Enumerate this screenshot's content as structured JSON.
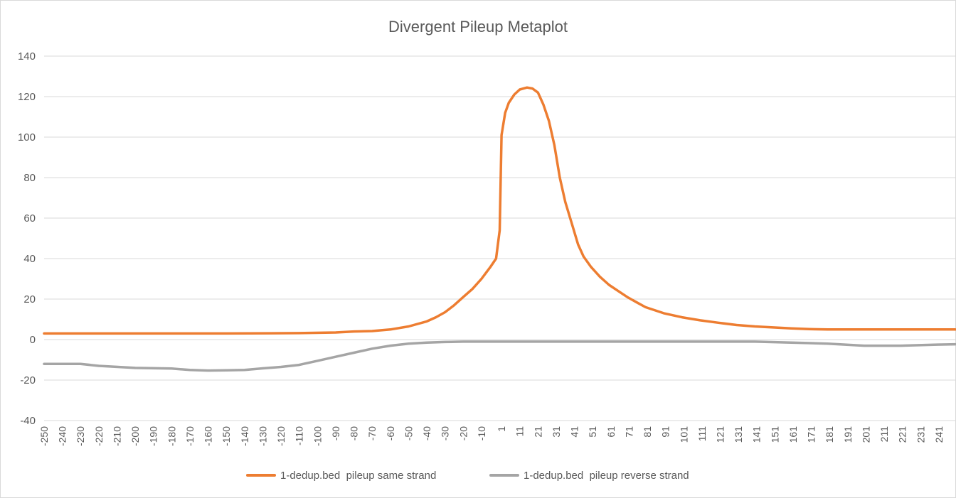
{
  "chart_data": {
    "type": "line",
    "title": "Divergent Pileup Metaplot",
    "xlabel": "",
    "ylabel": "",
    "ylim": [
      -40,
      140
    ],
    "yticks": [
      -40,
      -20,
      0,
      20,
      40,
      60,
      80,
      100,
      120,
      140
    ],
    "xlim": [
      -250,
      250
    ],
    "xticks": [
      -250,
      -240,
      -230,
      -220,
      -210,
      -200,
      -190,
      -180,
      -170,
      -160,
      -150,
      -140,
      -130,
      -120,
      -110,
      -100,
      -90,
      -80,
      -70,
      -60,
      -50,
      -40,
      -30,
      -20,
      -10,
      1,
      11,
      21,
      31,
      41,
      51,
      61,
      71,
      81,
      91,
      101,
      111,
      121,
      131,
      141,
      151,
      161,
      171,
      181,
      191,
      201,
      211,
      221,
      231,
      241
    ],
    "grid": true,
    "legend_position": "bottom",
    "series": [
      {
        "name": "1-dedup.bed  pileup same strand",
        "color": "#ed7d31",
        "points": [
          [
            -250,
            3
          ],
          [
            -200,
            3
          ],
          [
            -150,
            3
          ],
          [
            -110,
            3.2
          ],
          [
            -90,
            3.5
          ],
          [
            -80,
            4
          ],
          [
            -70,
            4.2
          ],
          [
            -60,
            5
          ],
          [
            -50,
            6.5
          ],
          [
            -40,
            9
          ],
          [
            -35,
            11
          ],
          [
            -30,
            13.5
          ],
          [
            -25,
            17
          ],
          [
            -20,
            21
          ],
          [
            -15,
            25
          ],
          [
            -10,
            30
          ],
          [
            -5,
            36
          ],
          [
            -2,
            40
          ],
          [
            0,
            54
          ],
          [
            1,
            101
          ],
          [
            3,
            112
          ],
          [
            5,
            117
          ],
          [
            8,
            121
          ],
          [
            11,
            123.5
          ],
          [
            15,
            124.5
          ],
          [
            18,
            124
          ],
          [
            21,
            122
          ],
          [
            24,
            116
          ],
          [
            27,
            108
          ],
          [
            30,
            96
          ],
          [
            33,
            80
          ],
          [
            36,
            68
          ],
          [
            40,
            56
          ],
          [
            43,
            47
          ],
          [
            46,
            41
          ],
          [
            50,
            36
          ],
          [
            55,
            31
          ],
          [
            60,
            27
          ],
          [
            65,
            24
          ],
          [
            70,
            21
          ],
          [
            75,
            18.5
          ],
          [
            80,
            16
          ],
          [
            90,
            13
          ],
          [
            100,
            11
          ],
          [
            110,
            9.5
          ],
          [
            120,
            8.3
          ],
          [
            130,
            7.2
          ],
          [
            140,
            6.5
          ],
          [
            150,
            6
          ],
          [
            160,
            5.5
          ],
          [
            170,
            5.2
          ],
          [
            180,
            5
          ],
          [
            200,
            5
          ],
          [
            220,
            5
          ],
          [
            250,
            5
          ]
        ]
      },
      {
        "name": "1-dedup.bed  pileup reverse strand",
        "color": "#a5a5a5",
        "points": [
          [
            -250,
            -12
          ],
          [
            -230,
            -12
          ],
          [
            -220,
            -13
          ],
          [
            -200,
            -14
          ],
          [
            -180,
            -14.3
          ],
          [
            -170,
            -15
          ],
          [
            -160,
            -15.3
          ],
          [
            -150,
            -15.2
          ],
          [
            -140,
            -15
          ],
          [
            -130,
            -14.2
          ],
          [
            -120,
            -13.5
          ],
          [
            -110,
            -12.5
          ],
          [
            -100,
            -10.5
          ],
          [
            -90,
            -8.5
          ],
          [
            -80,
            -6.5
          ],
          [
            -70,
            -4.5
          ],
          [
            -60,
            -3
          ],
          [
            -50,
            -2
          ],
          [
            -40,
            -1.5
          ],
          [
            -30,
            -1.2
          ],
          [
            -20,
            -1
          ],
          [
            0,
            -1
          ],
          [
            20,
            -1
          ],
          [
            40,
            -1
          ],
          [
            60,
            -1
          ],
          [
            80,
            -1
          ],
          [
            100,
            -1
          ],
          [
            120,
            -1
          ],
          [
            140,
            -1
          ],
          [
            160,
            -1.5
          ],
          [
            180,
            -2
          ],
          [
            200,
            -3
          ],
          [
            220,
            -3
          ],
          [
            240,
            -2.5
          ],
          [
            250,
            -2.3
          ]
        ]
      }
    ]
  }
}
